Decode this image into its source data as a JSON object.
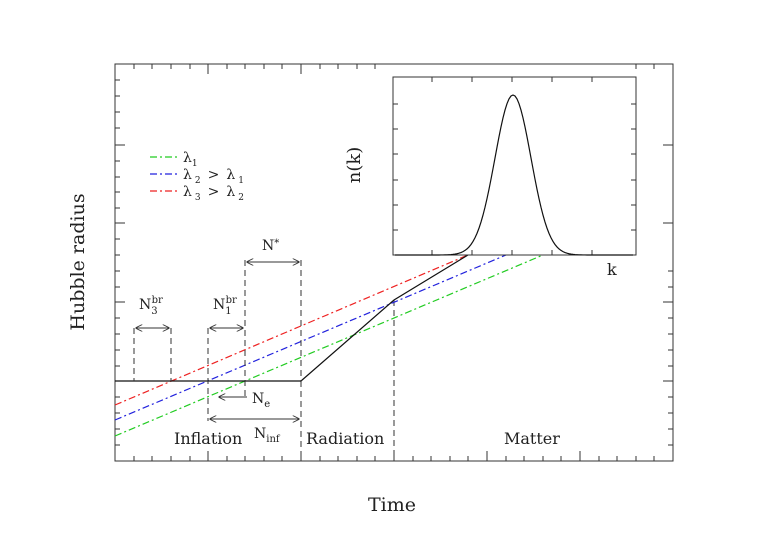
{
  "axes": {
    "xlabel": "Time",
    "ylabel": "Hubble radius"
  },
  "legend": {
    "items": [
      {
        "label": "λ1",
        "color": "#22cc22"
      },
      {
        "label": "λ2 > λ1",
        "color": "#2222dd"
      },
      {
        "label": "λ3 > λ2",
        "color": "#ee2222"
      }
    ]
  },
  "eras": {
    "inflation": "Inflation",
    "radiation": "Radiation",
    "matter": "Matter"
  },
  "markers": {
    "n3br": "N3br",
    "n1br": "N1br",
    "nstar": "N*",
    "ne": "Ne",
    "ninf": "Ninf"
  },
  "inset": {
    "ylabel": "n(k)",
    "xlabel": "k"
  },
  "colors": {
    "lambda1": "#22cc22",
    "lambda2": "#2222dd",
    "lambda3": "#ee2222",
    "axis": "#333333"
  }
}
